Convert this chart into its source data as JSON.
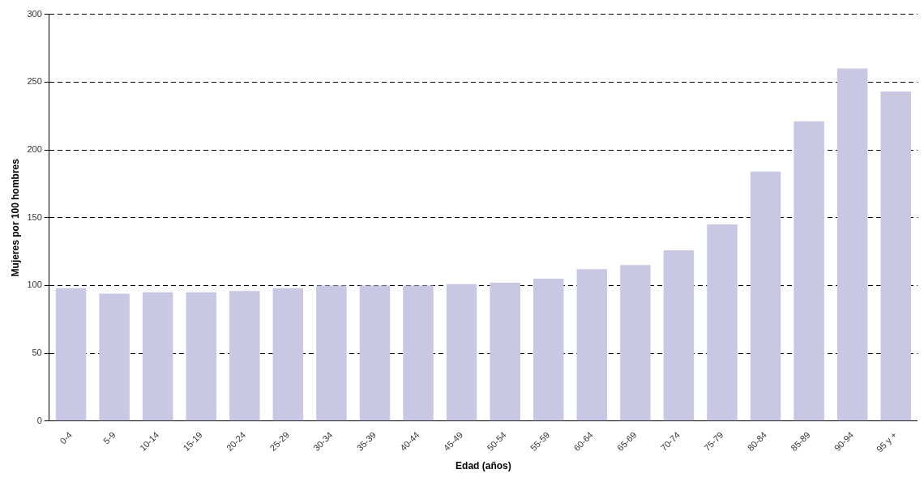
{
  "chart_data": {
    "type": "bar",
    "xlabel": "Edad (años)",
    "ylabel": "Mujeres por 100 hombres",
    "categories": [
      "0-4",
      "5-9",
      "10-14",
      "15-19",
      "20-24",
      "25-29",
      "30-34",
      "35-39",
      "40-44",
      "45-49",
      "50-54",
      "55-59",
      "60-64",
      "65-69",
      "70-74",
      "75-79",
      "80-84",
      "85-89",
      "90-94",
      "95 y +"
    ],
    "values": [
      98,
      94,
      95,
      95,
      96,
      98,
      100,
      100,
      100,
      101,
      102,
      105,
      112,
      115,
      126,
      145,
      184,
      221,
      260,
      243
    ],
    "color": "#c8c8e4",
    "ylim": [
      0,
      300
    ],
    "yticks": [
      0,
      50,
      100,
      150,
      200,
      250,
      300
    ],
    "grid": "y",
    "legend": false,
    "line_style": "dashed"
  }
}
